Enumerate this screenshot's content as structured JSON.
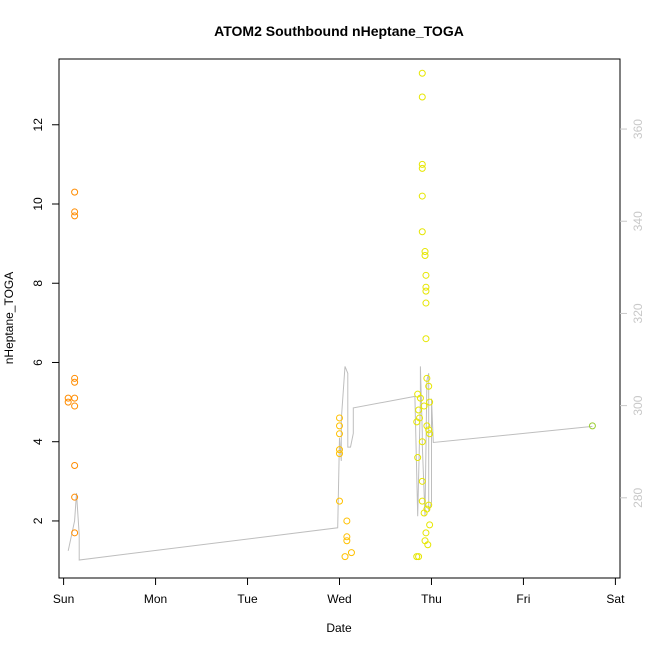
{
  "chart_data": {
    "type": "scatter",
    "title": "ATOM2 Southbound nHeptane_TOGA",
    "xlabel": "Date",
    "ylabel": "nHeptane_TOGA",
    "x_ticks": [
      "Sun",
      "Mon",
      "Tue",
      "Wed",
      "Thu",
      "Fri",
      "Sat"
    ],
    "x_domain_days": [
      -0.05,
      6.05
    ],
    "ylim": [
      0.56,
      13.66
    ],
    "y_ticks": [
      2,
      4,
      6,
      8,
      10,
      12
    ],
    "y2lim": [
      262.6,
      375.2
    ],
    "y2_ticks": [
      280,
      300,
      320,
      340,
      360
    ],
    "right_axis_color": "#c8c8c8",
    "line_color": "#bebebe",
    "series": [
      {
        "color": "#ff8c00",
        "points": [
          [
            0.05,
            5.1
          ],
          [
            0.05,
            5.0
          ],
          [
            0.12,
            10.3
          ],
          [
            0.12,
            9.8
          ],
          [
            0.12,
            9.7
          ],
          [
            0.12,
            5.6
          ],
          [
            0.12,
            5.5
          ],
          [
            0.12,
            5.1
          ],
          [
            0.12,
            4.9
          ],
          [
            0.12,
            3.4
          ],
          [
            0.12,
            2.6
          ],
          [
            0.12,
            1.7
          ]
        ]
      },
      {
        "color": "#ffc000",
        "points": [
          [
            3.0,
            4.6
          ],
          [
            3.0,
            4.4
          ],
          [
            3.0,
            4.2
          ],
          [
            3.0,
            3.8
          ],
          [
            3.0,
            3.7
          ],
          [
            3.0,
            2.5
          ],
          [
            3.08,
            2.0
          ],
          [
            3.08,
            1.6
          ],
          [
            3.08,
            1.5
          ],
          [
            3.06,
            1.1
          ],
          [
            3.13,
            1.2
          ]
        ]
      },
      {
        "color": "#e6e600",
        "points": [
          [
            3.9,
            13.3
          ],
          [
            3.9,
            12.7
          ],
          [
            3.9,
            11.0
          ],
          [
            3.9,
            10.9
          ],
          [
            3.9,
            10.2
          ],
          [
            3.9,
            9.3
          ],
          [
            3.93,
            8.8
          ],
          [
            3.93,
            8.7
          ],
          [
            3.94,
            8.2
          ],
          [
            3.94,
            7.9
          ],
          [
            3.94,
            7.8
          ],
          [
            3.94,
            7.5
          ],
          [
            3.94,
            6.6
          ],
          [
            3.95,
            5.6
          ],
          [
            3.97,
            5.4
          ],
          [
            3.85,
            5.2
          ],
          [
            3.88,
            5.1
          ],
          [
            3.98,
            5.0
          ],
          [
            3.92,
            4.9
          ],
          [
            3.86,
            4.8
          ],
          [
            3.87,
            4.6
          ],
          [
            3.84,
            4.5
          ],
          [
            3.95,
            4.4
          ],
          [
            3.97,
            4.3
          ],
          [
            3.98,
            4.2
          ],
          [
            3.9,
            4.0
          ],
          [
            3.85,
            3.6
          ],
          [
            3.9,
            3.0
          ],
          [
            3.9,
            2.5
          ],
          [
            3.97,
            2.4
          ],
          [
            3.95,
            2.3
          ],
          [
            3.92,
            2.2
          ],
          [
            3.98,
            1.9
          ],
          [
            3.94,
            1.7
          ],
          [
            3.93,
            1.5
          ],
          [
            3.96,
            1.4
          ],
          [
            3.84,
            1.1
          ],
          [
            3.86,
            1.1
          ]
        ]
      },
      {
        "color": "#9acd32",
        "points": [
          [
            5.75,
            4.4
          ]
        ]
      }
    ],
    "line_y2": [
      [
        0.05,
        268.5
      ],
      [
        0.12,
        275.0
      ],
      [
        0.14,
        281.0
      ],
      [
        0.17,
        272.0
      ],
      [
        0.17,
        266.5
      ],
      [
        2.98,
        273.5
      ],
      [
        3.0,
        293.0
      ],
      [
        3.02,
        288.0
      ],
      [
        3.02,
        297.0
      ],
      [
        3.06,
        308.5
      ],
      [
        3.09,
        307.0
      ],
      [
        3.09,
        291.0
      ],
      [
        3.12,
        291.0
      ],
      [
        3.15,
        294.0
      ],
      [
        3.15,
        299.5
      ],
      [
        3.82,
        302.0
      ],
      [
        3.85,
        276.0
      ],
      [
        3.88,
        301.0
      ],
      [
        3.88,
        308.5
      ],
      [
        3.9,
        294.0
      ],
      [
        3.9,
        291.5
      ],
      [
        3.93,
        276.0
      ],
      [
        3.95,
        305.5
      ],
      [
        3.97,
        307.0
      ],
      [
        3.97,
        282.0
      ],
      [
        3.97,
        277.0
      ],
      [
        4.0,
        279.0
      ],
      [
        4.0,
        301.5
      ],
      [
        4.02,
        292.0
      ],
      [
        5.75,
        295.5
      ]
    ]
  }
}
